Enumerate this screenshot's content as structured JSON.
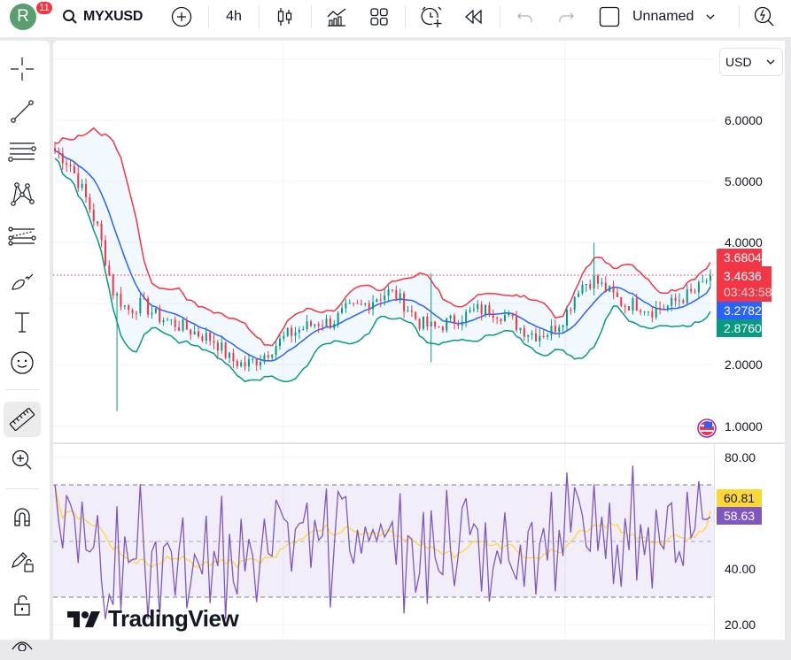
{
  "topbar": {
    "avatar_letter": "R",
    "notification_count": "11",
    "symbol": "MYXUSD",
    "timeframe": "4h",
    "layout_name": "Unnamed",
    "icons": [
      "search-icon",
      "add-symbol-icon",
      "candles-icon",
      "indicators-icon",
      "templates-icon",
      "alert-icon",
      "replay-icon",
      "undo-icon",
      "redo-icon",
      "layout-icon",
      "chevron-down-icon",
      "quick-search-icon"
    ]
  },
  "leftbar": {
    "tools": [
      "crosshair",
      "trend-line",
      "fib-retracement",
      "patterns",
      "forecast",
      "brush",
      "text",
      "emoji",
      "ruler",
      "zoom-in",
      "magnet",
      "lock-drawings",
      "lock-all",
      "hide"
    ]
  },
  "price_axis": {
    "currency": "USD",
    "ticks": [
      "6.0000",
      "5.0000",
      "4.0000",
      "2.0000",
      "1.0000"
    ],
    "tags": {
      "upper_band": "3.6804",
      "last_price": "3.4636",
      "countdown": "03:43:58",
      "basis": "3.2782",
      "lower_band": "2.8760"
    },
    "colors": {
      "upper": "#f23645",
      "last": "#f23645",
      "basis": "#2962ff",
      "lower": "#089981"
    }
  },
  "rsi_axis": {
    "ticks": [
      "80.00",
      "40.00",
      "20.00"
    ],
    "tags": {
      "rsi_ma": "60.81",
      "rsi": "58.63"
    },
    "colors": {
      "rsi_ma": "#fdd835",
      "rsi": "#7e57c2"
    }
  },
  "branding": {
    "logo_text": "TradingView"
  },
  "chart_data": [
    {
      "type": "candlestick",
      "title": "MYXUSD 4h with Bollinger Bands",
      "ylabel": "USD",
      "ylim": [
        0.8,
        6.9
      ],
      "yticks": [
        1,
        2,
        4,
        5,
        6
      ],
      "last_price": 3.4636,
      "bollinger": {
        "upper": 3.6804,
        "basis": 3.2782,
        "lower": 2.876
      },
      "approx_path_close": [
        5.5,
        5.3,
        4.8,
        4.2,
        3.2,
        2.9,
        3.0,
        2.8,
        2.7,
        2.6,
        2.5,
        2.4,
        2.1,
        2.0,
        2.1,
        2.3,
        2.5,
        2.6,
        2.7,
        2.7,
        2.9,
        2.95,
        3.1,
        3.2,
        3.0,
        2.7,
        2.6,
        2.7,
        2.8,
        2.9,
        2.9,
        2.8,
        2.6,
        2.5,
        2.55,
        2.8,
        3.3,
        3.4,
        3.2,
        3.0,
        3.0,
        2.9,
        2.95,
        3.1,
        3.2,
        3.46
      ],
      "extremes": {
        "high": 6.5,
        "wick_low": 1.25,
        "spike_high": 4.0
      }
    },
    {
      "type": "line",
      "title": "RSI 14",
      "ylim": [
        18,
        84
      ],
      "yticks": [
        20,
        40,
        80
      ],
      "bands": {
        "upper": 70,
        "middle": 50,
        "lower": 30
      },
      "series": [
        {
          "name": "RSI",
          "last": 58.63,
          "color": "#7e57c2"
        },
        {
          "name": "RSI MA",
          "last": 60.81,
          "color": "#fdd835"
        }
      ]
    }
  ]
}
